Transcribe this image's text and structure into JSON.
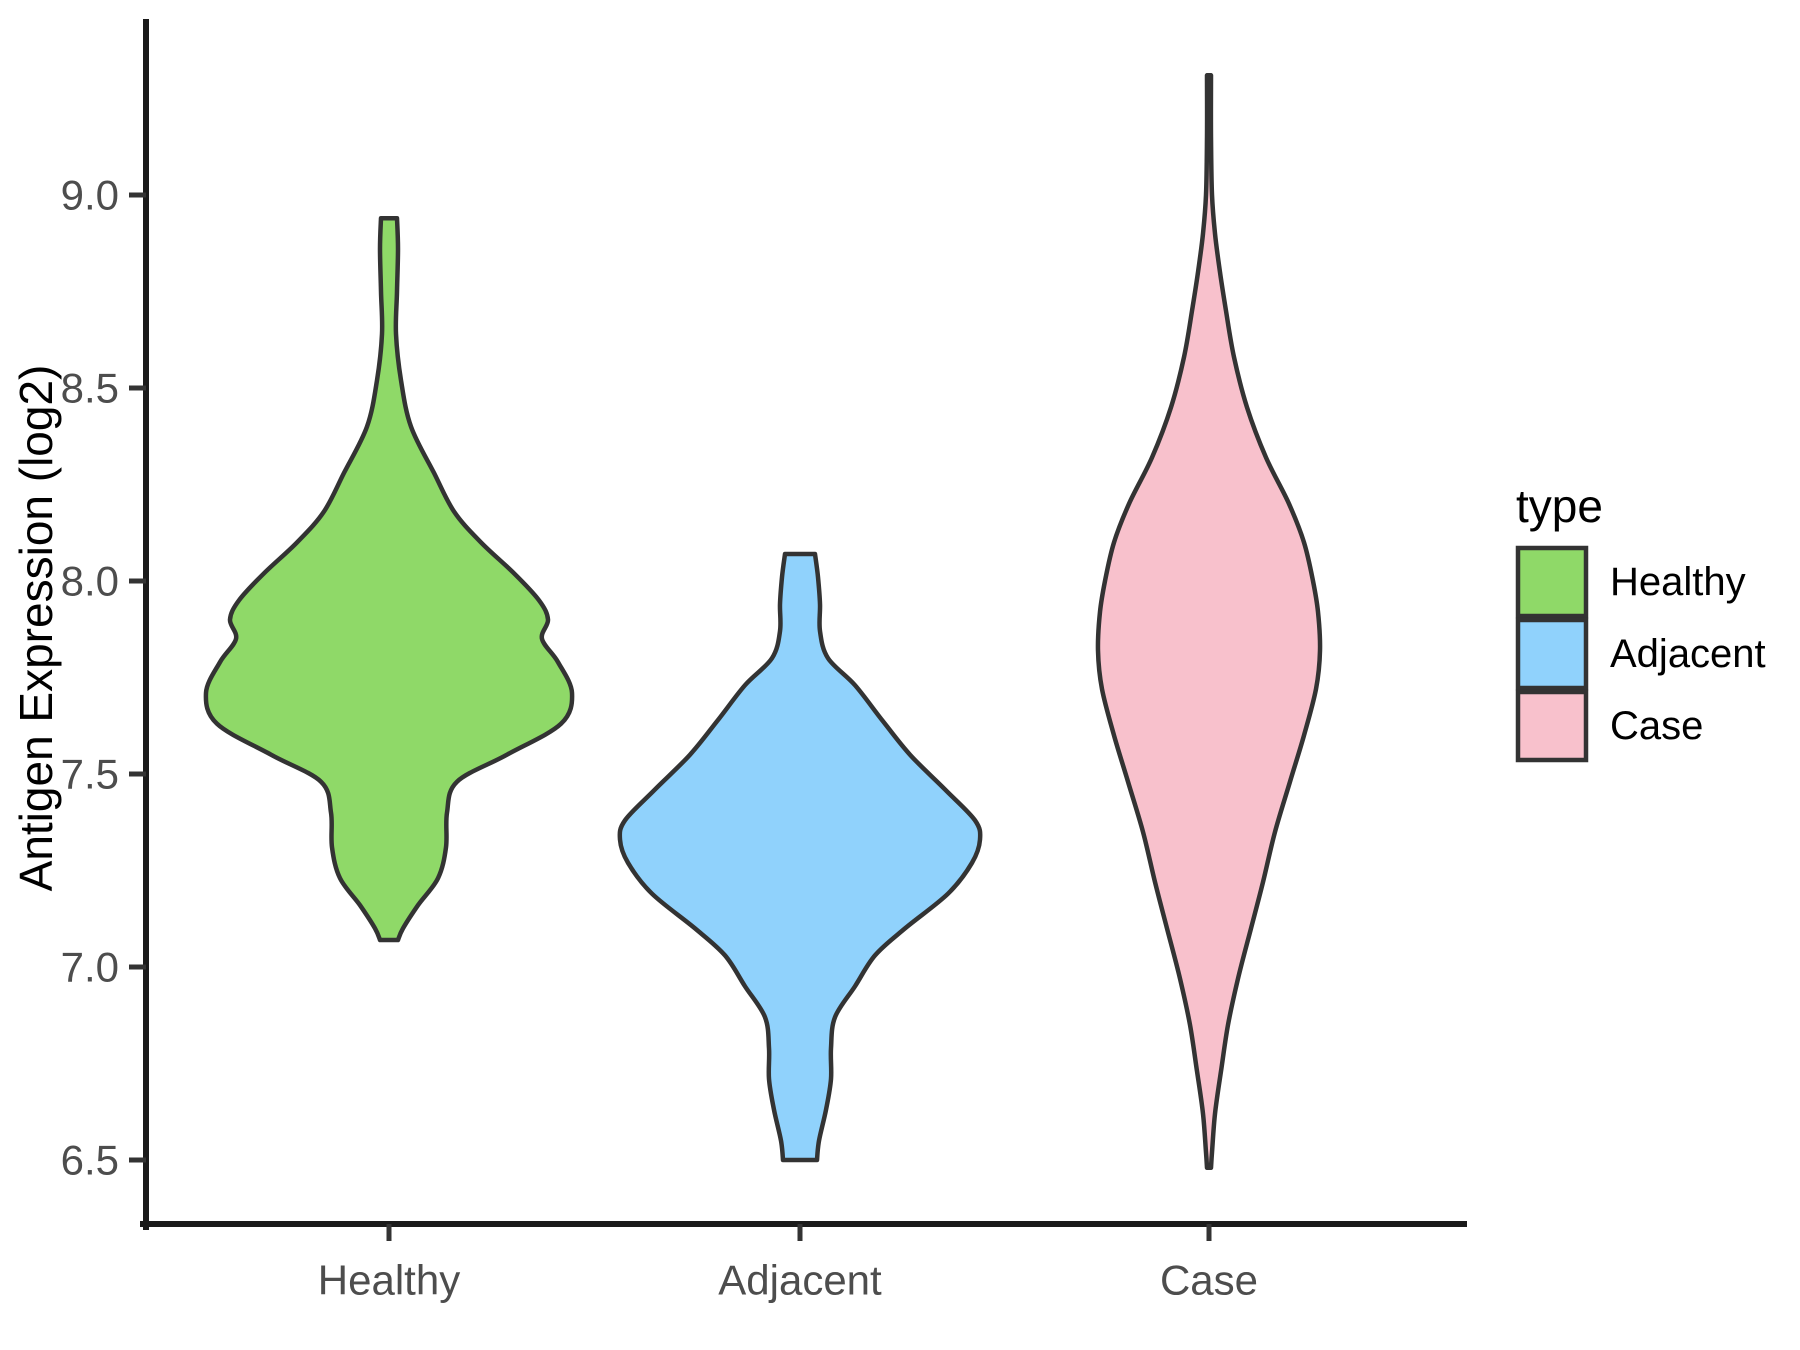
{
  "figure": {
    "background": "#ffffff",
    "axis_text_color": "#4d4d4d",
    "axis_line_color": "#1a1a1a",
    "violin_outline_color": "#333333"
  },
  "chart_data": {
    "type": "violin",
    "title": "",
    "xlabel": "",
    "ylabel": "Antigen Expression (log2)",
    "legend_title": "type",
    "legend_position": "right",
    "grid": false,
    "categories": [
      "Healthy",
      "Adjacent",
      "Case"
    ],
    "y_ticks": [
      6.5,
      7.0,
      7.5,
      8.0,
      8.5,
      9.0
    ],
    "y_tick_labels": [
      "6.5",
      "7.0",
      "7.5",
      "8.0",
      "8.5",
      "9.0"
    ],
    "ylim": [
      6.35,
      9.45
    ],
    "series": [
      {
        "name": "Healthy",
        "fill": "#8FD968",
        "min": 7.07,
        "max": 8.94,
        "peak": 7.71,
        "profile_units": "pairs of [expression_value, kde_half_width_px]",
        "profile": [
          [
            8.94,
            8
          ],
          [
            8.86,
            9
          ],
          [
            8.75,
            8
          ],
          [
            8.64,
            7
          ],
          [
            8.52,
            12
          ],
          [
            8.4,
            22
          ],
          [
            8.28,
            45
          ],
          [
            8.18,
            65
          ],
          [
            8.1,
            92
          ],
          [
            8.02,
            125
          ],
          [
            7.95,
            150
          ],
          [
            7.9,
            159
          ],
          [
            7.85,
            153
          ],
          [
            7.79,
            169
          ],
          [
            7.71,
            183
          ],
          [
            7.63,
            172
          ],
          [
            7.55,
            118
          ],
          [
            7.48,
            68
          ],
          [
            7.4,
            58
          ],
          [
            7.31,
            57
          ],
          [
            7.23,
            49
          ],
          [
            7.16,
            29
          ],
          [
            7.1,
            14
          ],
          [
            7.07,
            9
          ]
        ]
      },
      {
        "name": "Adjacent",
        "fill": "#90D2FC",
        "min": 6.5,
        "max": 8.07,
        "peak": 7.33,
        "profile_units": "pairs of [expression_value, kde_half_width_px]",
        "profile": [
          [
            8.07,
            15
          ],
          [
            8.01,
            18
          ],
          [
            7.94,
            20
          ],
          [
            7.87,
            20
          ],
          [
            7.8,
            28
          ],
          [
            7.73,
            55
          ],
          [
            7.64,
            82
          ],
          [
            7.55,
            110
          ],
          [
            7.46,
            145
          ],
          [
            7.38,
            175
          ],
          [
            7.33,
            180
          ],
          [
            7.27,
            172
          ],
          [
            7.19,
            148
          ],
          [
            7.1,
            105
          ],
          [
            7.03,
            75
          ],
          [
            6.95,
            55
          ],
          [
            6.87,
            35
          ],
          [
            6.79,
            31
          ],
          [
            6.71,
            31
          ],
          [
            6.63,
            26
          ],
          [
            6.55,
            19
          ],
          [
            6.5,
            17
          ]
        ]
      },
      {
        "name": "Case",
        "fill": "#F8C1CC",
        "min": 6.48,
        "max": 9.31,
        "peak": 7.82,
        "profile_units": "pairs of [expression_value, kde_half_width_px]",
        "profile": [
          [
            9.31,
            2
          ],
          [
            9.15,
            2
          ],
          [
            9.0,
            3
          ],
          [
            8.9,
            6
          ],
          [
            8.8,
            11
          ],
          [
            8.7,
            17
          ],
          [
            8.58,
            25
          ],
          [
            8.45,
            38
          ],
          [
            8.32,
            57
          ],
          [
            8.2,
            80
          ],
          [
            8.1,
            95
          ],
          [
            8.0,
            104
          ],
          [
            7.92,
            109
          ],
          [
            7.82,
            111
          ],
          [
            7.72,
            107
          ],
          [
            7.6,
            95
          ],
          [
            7.48,
            81
          ],
          [
            7.35,
            66
          ],
          [
            7.22,
            54
          ],
          [
            7.1,
            42
          ],
          [
            6.97,
            29
          ],
          [
            6.85,
            19
          ],
          [
            6.73,
            12
          ],
          [
            6.62,
            6
          ],
          [
            6.52,
            3
          ],
          [
            6.48,
            2
          ]
        ]
      }
    ]
  }
}
